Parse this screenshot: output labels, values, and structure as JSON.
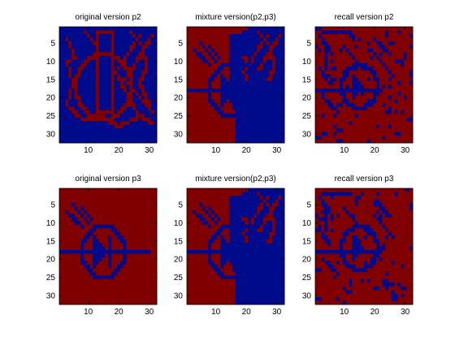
{
  "figure": {
    "colors": {
      "one": "#000b8c",
      "zero": "#800000",
      "background": "#ffffff",
      "axis": "#000000"
    },
    "grid_size": 32,
    "y_ticks": [
      5,
      10,
      15,
      20,
      25,
      30
    ],
    "x_ticks": [
      10,
      20,
      30
    ],
    "panels": [
      {
        "title": "original version p2",
        "pattern": "p2"
      },
      {
        "title": "mixture version(p2,p3)",
        "pattern": "mix"
      },
      {
        "title": "recall version p2",
        "pattern": "recall_p2"
      },
      {
        "title": "original version p3",
        "pattern": "p3"
      },
      {
        "title": "mixture version(p2,p3)",
        "pattern": "mix"
      },
      {
        "title": "recall version p3",
        "pattern": "recall_p3"
      }
    ]
  }
}
